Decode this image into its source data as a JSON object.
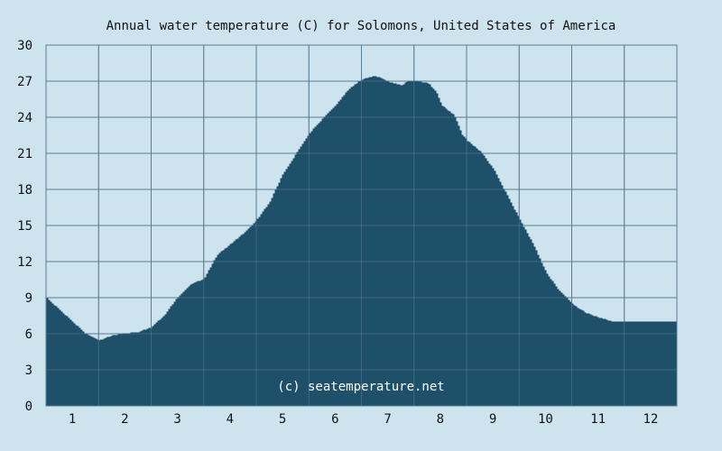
{
  "chart_data": {
    "type": "area",
    "title": "Annual water temperature (C) for Solomons, United States of America",
    "xlabel": "",
    "ylabel": "",
    "ylim": [
      0,
      30
    ],
    "xlim": [
      0.5,
      12.5
    ],
    "yticks": [
      "0",
      "3",
      "6",
      "9",
      "12",
      "15",
      "18",
      "21",
      "24",
      "27",
      "30"
    ],
    "xticks": [
      "1",
      "2",
      "3",
      "4",
      "5",
      "6",
      "7",
      "8",
      "9",
      "10",
      "11",
      "12"
    ],
    "grid": true,
    "legend": "none",
    "annotation": "(c) seatemperature.net",
    "colors": {
      "fill": "#1f5069",
      "background": "#cde3ee",
      "grid": "#5a7d92"
    },
    "x": [
      0.5,
      0.75,
      1.0,
      1.25,
      1.5,
      1.75,
      2.0,
      2.25,
      2.5,
      2.75,
      3.0,
      3.25,
      3.5,
      3.75,
      4.0,
      4.25,
      4.5,
      4.75,
      5.0,
      5.25,
      5.5,
      5.75,
      6.0,
      6.25,
      6.5,
      6.75,
      7.0,
      7.25,
      7.4,
      7.5,
      7.75,
      7.9,
      8.0,
      8.25,
      8.4,
      8.5,
      8.75,
      9.0,
      9.25,
      9.5,
      9.75,
      10.0,
      10.25,
      10.5,
      10.75,
      11.0,
      11.25,
      11.5,
      11.75,
      12.0,
      12.25,
      12.5
    ],
    "values": [
      8.9,
      7.9,
      6.9,
      5.9,
      5.4,
      5.8,
      6.0,
      6.1,
      6.5,
      7.5,
      9.0,
      10.1,
      10.5,
      12.5,
      13.4,
      14.3,
      15.4,
      16.9,
      19.2,
      20.9,
      22.6,
      23.8,
      24.9,
      26.3,
      27.1,
      27.4,
      26.9,
      26.6,
      27.0,
      27.0,
      26.8,
      26.1,
      25.0,
      24.1,
      22.5,
      22.0,
      21.1,
      19.6,
      17.5,
      15.4,
      13.4,
      11.0,
      9.5,
      8.4,
      7.7,
      7.3,
      7.0,
      7.0,
      7.0,
      7.0,
      7.0,
      7.0
    ]
  }
}
